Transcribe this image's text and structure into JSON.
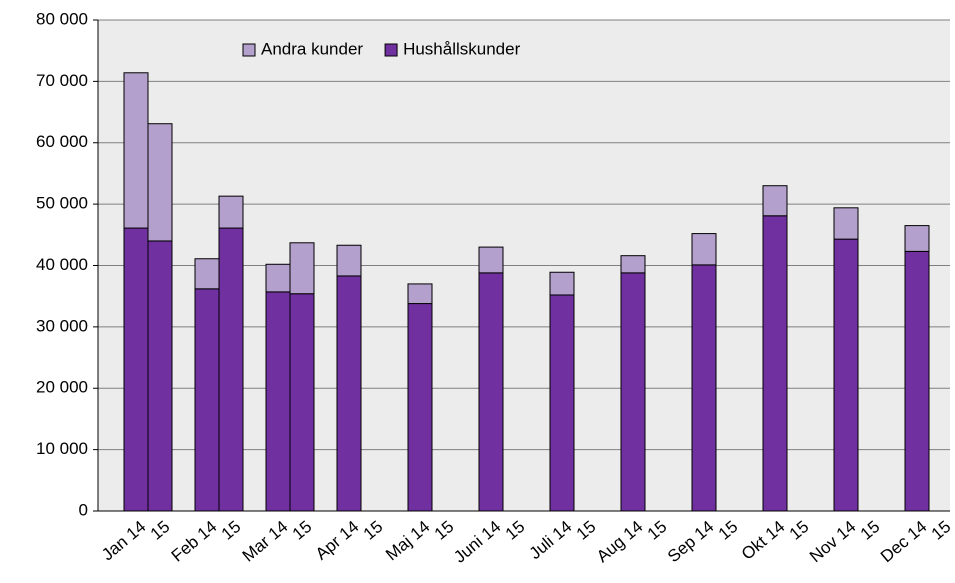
{
  "chart_data": {
    "type": "stacked_bar",
    "categories": [
      "Jan 14",
      "15",
      "Feb 14",
      "15",
      "Mar 14",
      "15",
      "Apr 14",
      "15",
      "Maj 14",
      "15",
      "Juni 14",
      "15",
      "Juli 14",
      "15",
      "Aug 14",
      "15",
      "Sep 14",
      "15",
      "Okt 14",
      "15",
      "Nov 14",
      "15",
      "Dec 14",
      "15"
    ],
    "series": [
      {
        "name": "Hushållskunder",
        "color": "#7030a0",
        "values": [
          46100,
          44000,
          36200,
          46100,
          35700,
          35400,
          38300,
          null,
          33800,
          null,
          38800,
          null,
          35200,
          null,
          38800,
          null,
          40100,
          null,
          48100,
          null,
          44300,
          null,
          42300,
          null
        ]
      },
      {
        "name": "Andra kunder",
        "color": "#b4a0cc",
        "values": [
          25300,
          19100,
          4900,
          5200,
          4500,
          8300,
          5000,
          null,
          3200,
          null,
          4200,
          null,
          3700,
          null,
          2800,
          null,
          5100,
          null,
          4900,
          null,
          5100,
          null,
          4200,
          null
        ]
      }
    ],
    "ylim": [
      0,
      80000
    ],
    "yticks": [
      {
        "value": 0,
        "label": "0"
      },
      {
        "value": 10000,
        "label": "10 000"
      },
      {
        "value": 20000,
        "label": "20 000"
      },
      {
        "value": 30000,
        "label": "30 000"
      },
      {
        "value": 40000,
        "label": "40 000"
      },
      {
        "value": 50000,
        "label": "50 000"
      },
      {
        "value": 60000,
        "label": "60 000"
      },
      {
        "value": 70000,
        "label": "70 000"
      },
      {
        "value": 80000,
        "label": "80 000"
      }
    ],
    "grid": true,
    "legend": "top"
  }
}
